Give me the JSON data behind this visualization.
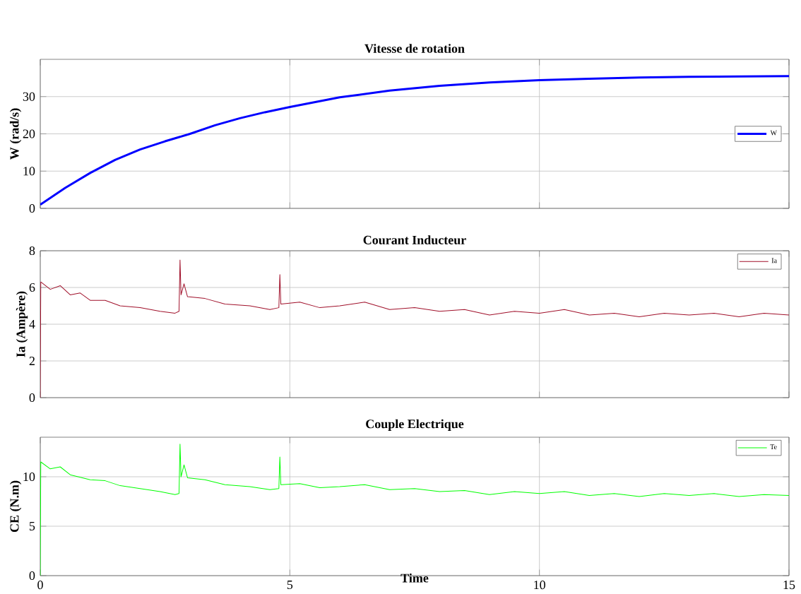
{
  "chart_data": [
    {
      "type": "line",
      "title": "Vitesse de rotation",
      "ylabel": "W (rad/s)",
      "xlim": [
        0,
        15
      ],
      "xticks": [
        0,
        5,
        10,
        15
      ],
      "ylim": [
        0,
        40
      ],
      "yticks": [
        0,
        10,
        20,
        30
      ],
      "grid": true,
      "legend": "right",
      "tick_labels": "y",
      "series": [
        {
          "name": "W",
          "color": "#0000ff",
          "x": [
            0,
            0.5,
            1,
            1.5,
            2,
            2.5,
            3,
            3.5,
            4,
            4.5,
            5,
            6,
            7,
            8,
            9,
            10,
            11,
            12,
            13,
            14,
            15
          ],
          "values": [
            1,
            5.5,
            9.5,
            13,
            15.8,
            18,
            20,
            22.3,
            24.2,
            25.8,
            27.2,
            29.8,
            31.6,
            32.9,
            33.8,
            34.4,
            34.8,
            35.1,
            35.3,
            35.4,
            35.5
          ]
        }
      ]
    },
    {
      "type": "line",
      "title": "Courant Inducteur",
      "ylabel": "Ia (Ampère)",
      "xlim": [
        0,
        15
      ],
      "xticks": [
        0,
        5,
        10,
        15
      ],
      "ylim": [
        0,
        8
      ],
      "yticks": [
        0,
        2,
        4,
        6,
        8
      ],
      "grid": true,
      "legend": "top right",
      "tick_labels": "y",
      "series": [
        {
          "name": "Ia",
          "color": "#a0102a",
          "x": [
            0,
            0.01,
            0.2,
            0.4,
            0.6,
            0.8,
            1.0,
            1.3,
            1.6,
            2.0,
            2.4,
            2.7,
            2.78,
            2.8,
            2.82,
            2.88,
            2.95,
            3.3,
            3.7,
            4.2,
            4.6,
            4.78,
            4.8,
            4.82,
            5.2,
            5.6,
            6.0,
            6.5,
            7.0,
            7.5,
            8.0,
            8.5,
            9.0,
            9.5,
            10,
            10.5,
            11,
            11.5,
            12,
            12.5,
            13,
            13.5,
            14,
            14.5,
            15
          ],
          "values": [
            0,
            6.3,
            5.9,
            6.1,
            5.6,
            5.7,
            5.3,
            5.3,
            5.0,
            4.9,
            4.7,
            4.6,
            4.7,
            7.5,
            5.6,
            6.2,
            5.5,
            5.4,
            5.1,
            5.0,
            4.8,
            4.9,
            6.7,
            5.1,
            5.2,
            4.9,
            5.0,
            5.2,
            4.8,
            4.9,
            4.7,
            4.8,
            4.5,
            4.7,
            4.6,
            4.8,
            4.5,
            4.6,
            4.4,
            4.6,
            4.5,
            4.6,
            4.4,
            4.6,
            4.5
          ]
        }
      ]
    },
    {
      "type": "line",
      "title": "Couple Electrique",
      "xlabel": "Time",
      "ylabel": "CE (N.m)",
      "xlim": [
        0,
        15
      ],
      "xticks": [
        0,
        5,
        10,
        15
      ],
      "ylim": [
        0,
        14
      ],
      "yticks": [
        0,
        5,
        10
      ],
      "grid": true,
      "legend": "top right",
      "series": [
        {
          "name": "Te",
          "color": "#00ff00",
          "x": [
            0,
            0.01,
            0.2,
            0.4,
            0.6,
            1.0,
            1.3,
            1.6,
            2.0,
            2.4,
            2.7,
            2.78,
            2.8,
            2.82,
            2.88,
            2.95,
            3.3,
            3.7,
            4.2,
            4.6,
            4.78,
            4.8,
            4.82,
            5.2,
            5.6,
            6,
            6.5,
            7,
            7.5,
            8,
            8.5,
            9,
            9.5,
            10,
            10.5,
            11,
            11.5,
            12,
            12.5,
            13,
            13.5,
            14,
            14.5,
            15
          ],
          "values": [
            0,
            11.5,
            10.8,
            11.0,
            10.2,
            9.7,
            9.6,
            9.1,
            8.8,
            8.5,
            8.2,
            8.3,
            13.3,
            10.0,
            11.2,
            9.9,
            9.7,
            9.2,
            9.0,
            8.7,
            8.8,
            12.0,
            9.2,
            9.3,
            8.9,
            9.0,
            9.2,
            8.7,
            8.8,
            8.5,
            8.6,
            8.2,
            8.5,
            8.3,
            8.5,
            8.1,
            8.3,
            8.0,
            8.3,
            8.1,
            8.3,
            8.0,
            8.2,
            8.1
          ]
        }
      ]
    }
  ]
}
